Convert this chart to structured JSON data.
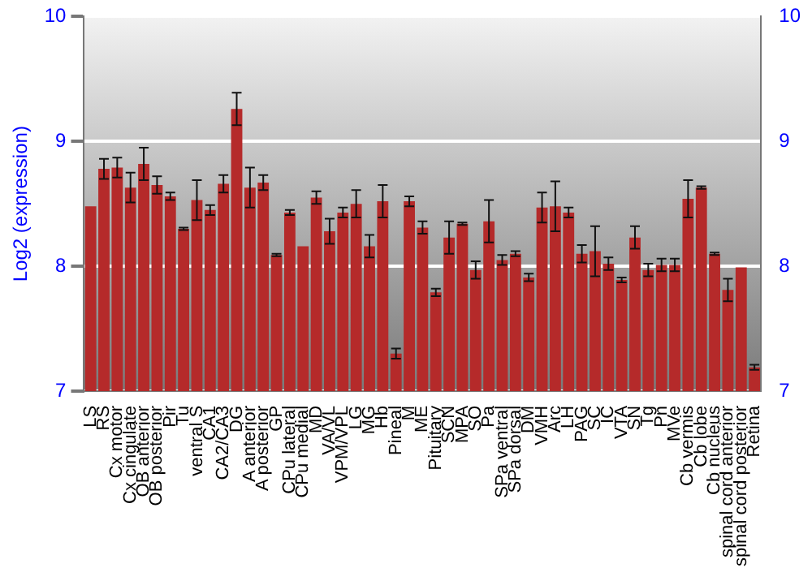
{
  "chart_data": {
    "type": "bar",
    "ylabel": "Log2 (expression)",
    "categories": [
      "LS",
      "RS",
      "Cx motor",
      "Cx cingulate",
      "OB anterior",
      "OB posterior",
      "Pir",
      "Tu",
      "ventral S",
      "CA1",
      "CA2/CA3",
      "DG",
      "A anterior",
      "A posterior",
      "GP",
      "CPu lateral",
      "CPu medial",
      "MD",
      "VA/VL",
      "VPM/VPL",
      "LG",
      "MG",
      "Hb",
      "Pineal",
      "M",
      "ME",
      "Pituitary",
      "SCN",
      "MPA",
      "SO",
      "Pa",
      "SPa ventral",
      "SPa dorsal",
      "DM",
      "VMH",
      "Arc",
      "LH",
      "PAG",
      "SC",
      "IC",
      "VTA",
      "SN",
      "Tg",
      "Pn",
      "MVe",
      "Cb vermis",
      "Cb lobe",
      "Cb nucleus",
      "spinal cord anterior",
      "spinal cord posterior",
      "Retina"
    ],
    "values": [
      8.48,
      8.78,
      8.79,
      8.63,
      8.82,
      8.65,
      8.56,
      8.3,
      8.53,
      8.45,
      8.66,
      9.26,
      8.63,
      8.67,
      8.09,
      8.43,
      8.16,
      8.55,
      8.28,
      8.43,
      8.5,
      8.16,
      8.52,
      7.3,
      8.52,
      8.31,
      7.79,
      8.23,
      8.34,
      7.97,
      8.36,
      8.05,
      8.1,
      7.91,
      8.47,
      8.48,
      8.43,
      8.1,
      8.12,
      8.02,
      7.89,
      8.23,
      7.97,
      8.01,
      8.01,
      8.54,
      8.63,
      8.1,
      7.81,
      7.99,
      7.19
    ],
    "errors": [
      null,
      0.08,
      0.08,
      0.12,
      0.13,
      0.07,
      0.03,
      0.01,
      0.16,
      0.04,
      0.07,
      0.13,
      0.16,
      0.06,
      0.01,
      0.02,
      null,
      0.05,
      0.1,
      0.04,
      0.11,
      0.09,
      0.13,
      0.04,
      0.04,
      0.05,
      0.03,
      0.13,
      0.01,
      0.07,
      0.17,
      0.04,
      0.02,
      0.03,
      0.12,
      0.2,
      0.04,
      0.07,
      0.2,
      0.05,
      0.02,
      0.09,
      0.05,
      0.05,
      0.05,
      0.15,
      0.01,
      0.01,
      0.09,
      null,
      0.02
    ],
    "color": "#b52a2a",
    "ylim": [
      7,
      10
    ],
    "yticks": [
      7,
      8,
      9,
      10
    ],
    "y2lim": [
      7,
      10
    ],
    "y2ticks": [
      7,
      8,
      9,
      10
    ],
    "grid": "y",
    "legend": false
  }
}
